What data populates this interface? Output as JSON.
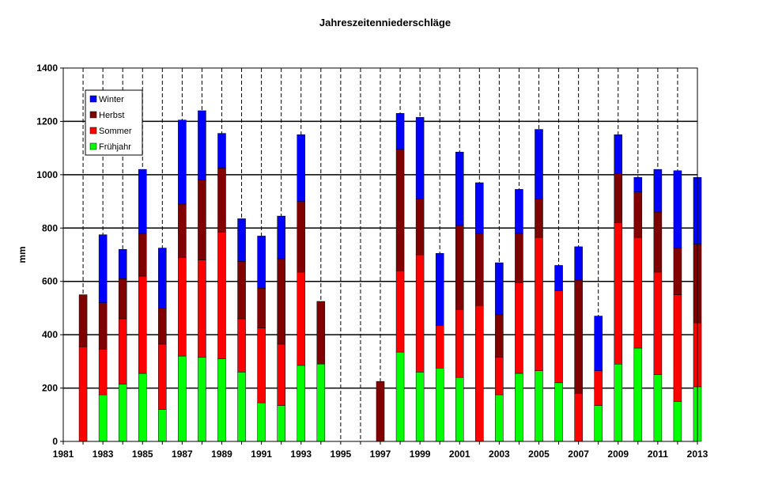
{
  "chart_data": {
    "type": "bar",
    "stacked": true,
    "title": "Jahreszeitenniederschläge",
    "xlabel": "",
    "ylabel": "mm",
    "ylim": [
      0,
      1400
    ],
    "yticks": [
      0,
      200,
      400,
      600,
      800,
      1000,
      1200,
      1400
    ],
    "xlim": [
      1981,
      2013
    ],
    "xticks": [
      1981,
      1983,
      1985,
      1987,
      1989,
      1991,
      1993,
      1995,
      1997,
      1999,
      2001,
      2003,
      2005,
      2007,
      2009,
      2011,
      2013
    ],
    "grid": true,
    "legend_position": "top-left",
    "categories": [
      1982,
      1983,
      1984,
      1985,
      1986,
      1987,
      1988,
      1989,
      1990,
      1991,
      1992,
      1993,
      1994,
      1997,
      1998,
      1999,
      2000,
      2001,
      2002,
      2003,
      2004,
      2005,
      2006,
      2007,
      2008,
      2009,
      2010,
      2011,
      2012,
      2013
    ],
    "series": [
      {
        "name": "Frühjahr",
        "color": "#00ff00",
        "values": [
          0,
          175,
          215,
          255,
          120,
          320,
          315,
          310,
          260,
          145,
          135,
          285,
          290,
          0,
          335,
          260,
          275,
          240,
          0,
          175,
          255,
          265,
          220,
          0,
          135,
          290,
          350,
          250,
          150,
          205
        ]
      },
      {
        "name": "Sommer",
        "color": "#ff0000",
        "values": [
          355,
          170,
          245,
          365,
          245,
          370,
          365,
          475,
          200,
          280,
          230,
          350,
          0,
          0,
          305,
          440,
          160,
          255,
          510,
          140,
          340,
          500,
          345,
          180,
          130,
          530,
          415,
          385,
          400,
          240
        ]
      },
      {
        "name": "Herbst",
        "color": "#800000",
        "values": [
          195,
          175,
          150,
          160,
          135,
          200,
          300,
          240,
          215,
          150,
          320,
          265,
          235,
          225,
          455,
          210,
          0,
          315,
          270,
          160,
          185,
          145,
          0,
          425,
          0,
          185,
          170,
          225,
          175,
          295
        ]
      },
      {
        "name": "Winter",
        "color": "#0000ff",
        "values": [
          0,
          255,
          110,
          240,
          225,
          315,
          260,
          130,
          160,
          195,
          160,
          250,
          0,
          0,
          135,
          305,
          270,
          275,
          190,
          195,
          165,
          260,
          95,
          125,
          205,
          145,
          55,
          160,
          290,
          250
        ]
      }
    ]
  }
}
